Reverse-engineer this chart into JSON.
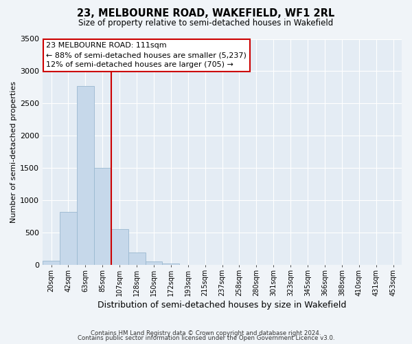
{
  "title1": "23, MELBOURNE ROAD, WAKEFIELD, WF1 2RL",
  "title2": "Size of property relative to semi-detached houses in Wakefield",
  "xlabel": "Distribution of semi-detached houses by size in Wakefield",
  "ylabel": "Number of semi-detached properties",
  "bin_labels": [
    "20sqm",
    "42sqm",
    "63sqm",
    "85sqm",
    "107sqm",
    "128sqm",
    "150sqm",
    "172sqm",
    "193sqm",
    "215sqm",
    "237sqm",
    "258sqm",
    "280sqm",
    "301sqm",
    "323sqm",
    "345sqm",
    "366sqm",
    "388sqm",
    "410sqm",
    "431sqm",
    "453sqm"
  ],
  "bin_values": [
    60,
    825,
    2775,
    1500,
    560,
    195,
    55,
    25,
    0,
    0,
    0,
    0,
    0,
    0,
    0,
    0,
    0,
    0,
    0,
    0,
    0
  ],
  "bar_color": "#c6d8ea",
  "bar_edge_color": "#9ab8d0",
  "annotation_label": "23 MELBOURNE ROAD: 111sqm",
  "annotation_line1": "← 88% of semi-detached houses are smaller (5,237)",
  "annotation_line2": "12% of semi-detached houses are larger (705) →",
  "red_line_color": "#cc0000",
  "annotation_box_color": "#ffffff",
  "annotation_box_edge": "#cc0000",
  "ylim": [
    0,
    3500
  ],
  "yticks": [
    0,
    500,
    1000,
    1500,
    2000,
    2500,
    3000,
    3500
  ],
  "footer1": "Contains HM Land Registry data © Crown copyright and database right 2024.",
  "footer2": "Contains public sector information licensed under the Open Government Licence v3.0.",
  "bg_color": "#f0f4f8",
  "plot_bg_color": "#e4ecf4",
  "grid_color": "#ffffff",
  "red_line_bin_index": 3.5
}
